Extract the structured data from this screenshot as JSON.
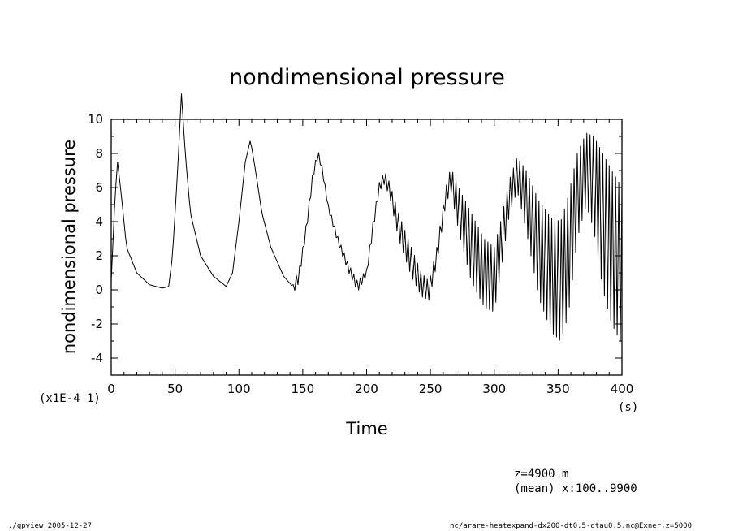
{
  "chart_data": {
    "type": "line",
    "title": "nondimensional pressure",
    "xlabel": "Time",
    "ylabel": "nondimensional pressure",
    "x_unit": "(s)",
    "y_scale_note": "(x1E-4 1)",
    "xlim": [
      0,
      400
    ],
    "ylim": [
      -5,
      10
    ],
    "x_ticks": [
      "0",
      "50",
      "100",
      "150",
      "200",
      "250",
      "300",
      "350",
      "400"
    ],
    "y_ticks": [
      "-4",
      "-2",
      "0",
      "2",
      "4",
      "6",
      "8",
      "10"
    ],
    "grid": false,
    "series": [
      {
        "name": "",
        "envelope_upper": [
          [
            0,
            0.5
          ],
          [
            3,
            5.5
          ],
          [
            5,
            7.5
          ],
          [
            8,
            5.5
          ],
          [
            12,
            2.5
          ],
          [
            20,
            1.0
          ],
          [
            30,
            0.3
          ],
          [
            40,
            0.1
          ],
          [
            45,
            0.2
          ],
          [
            48,
            2.0
          ],
          [
            52,
            7.0
          ],
          [
            55,
            11.5
          ],
          [
            58,
            8.0
          ],
          [
            62,
            4.5
          ],
          [
            70,
            2.0
          ],
          [
            80,
            0.8
          ],
          [
            90,
            0.2
          ],
          [
            95,
            1.0
          ],
          [
            100,
            4.0
          ],
          [
            105,
            7.5
          ],
          [
            109,
            8.8
          ],
          [
            113,
            7.0
          ],
          [
            118,
            4.5
          ],
          [
            125,
            2.5
          ],
          [
            135,
            0.8
          ],
          [
            142,
            0.2
          ],
          [
            148,
            1.5
          ],
          [
            153,
            4.0
          ],
          [
            158,
            7.0
          ],
          [
            162,
            8.2
          ],
          [
            165,
            7.3
          ],
          [
            170,
            5.0
          ],
          [
            178,
            3.0
          ],
          [
            186,
            1.5
          ],
          [
            193,
            0.5
          ],
          [
            200,
            1.2
          ],
          [
            205,
            4.0
          ],
          [
            210,
            6.3
          ],
          [
            214,
            7.0
          ],
          [
            218,
            6.3
          ],
          [
            225,
            4.5
          ],
          [
            235,
            2.5
          ],
          [
            243,
            1.0
          ],
          [
            249,
            0.5
          ],
          [
            255,
            2.5
          ],
          [
            262,
            6.0
          ],
          [
            266,
            7.2
          ],
          [
            272,
            6.0
          ],
          [
            282,
            4.5
          ],
          [
            292,
            3.0
          ],
          [
            300,
            2.5
          ],
          [
            305,
            4.0
          ],
          [
            312,
            6.5
          ],
          [
            318,
            7.8
          ],
          [
            325,
            7.0
          ],
          [
            335,
            5.2
          ],
          [
            345,
            4.2
          ],
          [
            352,
            4.0
          ],
          [
            358,
            5.5
          ],
          [
            365,
            8.0
          ],
          [
            372,
            9.2
          ],
          [
            378,
            9.0
          ],
          [
            385,
            8.0
          ],
          [
            392,
            7.0
          ],
          [
            400,
            6.0
          ]
        ],
        "envelope_lower": [
          [
            0,
            0.5
          ],
          [
            3,
            5.5
          ],
          [
            5,
            7.5
          ],
          [
            8,
            5.5
          ],
          [
            12,
            2.5
          ],
          [
            20,
            1.0
          ],
          [
            30,
            0.3
          ],
          [
            40,
            0.1
          ],
          [
            45,
            0.2
          ],
          [
            48,
            2.0
          ],
          [
            52,
            7.0
          ],
          [
            55,
            11.5
          ],
          [
            58,
            8.0
          ],
          [
            62,
            4.5
          ],
          [
            70,
            2.0
          ],
          [
            80,
            0.8
          ],
          [
            90,
            0.2
          ],
          [
            95,
            1.0
          ],
          [
            100,
            4.0
          ],
          [
            105,
            7.5
          ],
          [
            109,
            8.8
          ],
          [
            113,
            7.0
          ],
          [
            118,
            4.5
          ],
          [
            125,
            2.5
          ],
          [
            135,
            0.8
          ],
          [
            142,
            0.2
          ],
          [
            145,
            -0.2
          ],
          [
            148,
            1.0
          ],
          [
            153,
            3.5
          ],
          [
            158,
            6.5
          ],
          [
            162,
            7.8
          ],
          [
            165,
            7.0
          ],
          [
            170,
            4.7
          ],
          [
            178,
            2.6
          ],
          [
            186,
            1.0
          ],
          [
            193,
            -0.1
          ],
          [
            200,
            0.8
          ],
          [
            205,
            3.4
          ],
          [
            210,
            5.8
          ],
          [
            214,
            6.2
          ],
          [
            218,
            5.5
          ],
          [
            225,
            3.0
          ],
          [
            235,
            0.8
          ],
          [
            243,
            -0.4
          ],
          [
            249,
            -0.6
          ],
          [
            255,
            1.5
          ],
          [
            262,
            5.0
          ],
          [
            266,
            5.8
          ],
          [
            272,
            3.5
          ],
          [
            282,
            0.5
          ],
          [
            292,
            -1.0
          ],
          [
            300,
            -1.3
          ],
          [
            305,
            1.0
          ],
          [
            312,
            4.5
          ],
          [
            318,
            5.8
          ],
          [
            325,
            3.5
          ],
          [
            335,
            -0.5
          ],
          [
            345,
            -2.5
          ],
          [
            352,
            -3.0
          ],
          [
            358,
            -1.5
          ],
          [
            365,
            3.0
          ],
          [
            372,
            5.0
          ],
          [
            378,
            3.5
          ],
          [
            385,
            0.0
          ],
          [
            392,
            -2.0
          ],
          [
            400,
            -3.2
          ]
        ],
        "oscillation_period_s": 2.5
      }
    ]
  },
  "annotations": {
    "z_level": "z=4900 m",
    "mean_note": "(mean) x:100..9900",
    "footer_left": "./gpview  2005-12-27",
    "footer_right": "nc/arare-heatexpand-dx200-dt0.5-dtau0.5.nc@Exner,z=5000"
  }
}
